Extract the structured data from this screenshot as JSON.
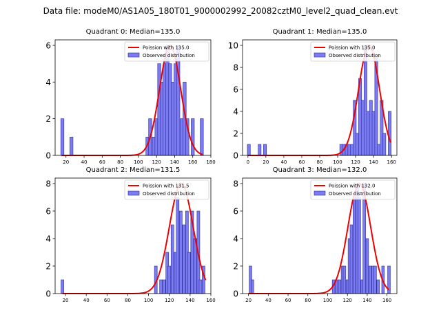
{
  "figure_title": "Data file: modeM0/AS1A05_180T01_9000002992_20082cztM0_level2_quad_clean.evt",
  "chart_data": [
    {
      "type": "bar",
      "quadrant": 0,
      "title": "Quadrant 0: Median=135.0",
      "median": 135.0,
      "xlim": [
        8,
        180
      ],
      "ylim": [
        0,
        6.3
      ],
      "xticks": [
        20,
        40,
        60,
        80,
        100,
        120,
        140,
        160,
        180
      ],
      "yticks": [
        0,
        2,
        4,
        6
      ],
      "bin_width": 3.5,
      "bins": [
        {
          "x": 16,
          "count": 2
        },
        {
          "x": 26,
          "count": 1
        },
        {
          "x": 110,
          "count": 1
        },
        {
          "x": 113,
          "count": 2
        },
        {
          "x": 117,
          "count": 1
        },
        {
          "x": 120,
          "count": 2
        },
        {
          "x": 123,
          "count": 5
        },
        {
          "x": 126,
          "count": 4
        },
        {
          "x": 129,
          "count": 5
        },
        {
          "x": 132,
          "count": 6
        },
        {
          "x": 135,
          "count": 5
        },
        {
          "x": 138,
          "count": 4
        },
        {
          "x": 141,
          "count": 5
        },
        {
          "x": 144,
          "count": 6
        },
        {
          "x": 148,
          "count": 2
        },
        {
          "x": 151,
          "count": 4
        },
        {
          "x": 154,
          "count": 2
        },
        {
          "x": 160,
          "count": 2
        },
        {
          "x": 170,
          "count": 2
        }
      ],
      "fit_scale": 6.0,
      "fit_range": [
        15,
        171
      ],
      "legend": {
        "fit": "Poission with 135.0",
        "observed": "Observed distribution"
      }
    },
    {
      "type": "bar",
      "quadrant": 1,
      "title": "Quadrant 1: Median=135.0",
      "median": 135.0,
      "xlim": [
        -6,
        166
      ],
      "ylim": [
        0,
        10.5
      ],
      "xticks": [
        0,
        20,
        40,
        60,
        80,
        100,
        120,
        140,
        160
      ],
      "yticks": [
        0,
        2,
        4,
        6,
        8,
        10
      ],
      "bin_width": 3.3,
      "bins": [
        {
          "x": 1,
          "count": 1
        },
        {
          "x": 13,
          "count": 1
        },
        {
          "x": 19,
          "count": 1
        },
        {
          "x": 104,
          "count": 1
        },
        {
          "x": 107,
          "count": 1
        },
        {
          "x": 110,
          "count": 1
        },
        {
          "x": 113,
          "count": 1
        },
        {
          "x": 116,
          "count": 1
        },
        {
          "x": 119,
          "count": 5
        },
        {
          "x": 122,
          "count": 2
        },
        {
          "x": 125,
          "count": 7
        },
        {
          "x": 128,
          "count": 5
        },
        {
          "x": 131,
          "count": 10
        },
        {
          "x": 134,
          "count": 4
        },
        {
          "x": 137,
          "count": 5
        },
        {
          "x": 140,
          "count": 4
        },
        {
          "x": 143,
          "count": 9
        },
        {
          "x": 146,
          "count": 1
        },
        {
          "x": 149,
          "count": 5
        },
        {
          "x": 152,
          "count": 2
        },
        {
          "x": 158,
          "count": 4
        }
      ],
      "fit_scale": 10.0,
      "fit_range": [
        0,
        159
      ],
      "legend": {
        "fit": "Poission with 135.0",
        "observed": "Observed distribution"
      }
    },
    {
      "type": "bar",
      "quadrant": 2,
      "title": "Quadrant 2: Median=131.5",
      "median": 131.5,
      "xlim": [
        10,
        160
      ],
      "ylim": [
        0,
        8.4
      ],
      "xticks": [
        20,
        40,
        60,
        80,
        100,
        120,
        140,
        160
      ],
      "yticks": [
        0,
        2,
        4,
        6,
        8
      ],
      "bin_width": 2.7,
      "bins": [
        {
          "x": 17,
          "count": 1
        },
        {
          "x": 107,
          "count": 2
        },
        {
          "x": 112,
          "count": 1
        },
        {
          "x": 115,
          "count": 1
        },
        {
          "x": 118,
          "count": 3
        },
        {
          "x": 120,
          "count": 2
        },
        {
          "x": 123,
          "count": 5
        },
        {
          "x": 126,
          "count": 3
        },
        {
          "x": 128,
          "count": 7
        },
        {
          "x": 131,
          "count": 6
        },
        {
          "x": 134,
          "count": 5
        },
        {
          "x": 137,
          "count": 6
        },
        {
          "x": 139,
          "count": 3
        },
        {
          "x": 142,
          "count": 6
        },
        {
          "x": 145,
          "count": 4
        },
        {
          "x": 148,
          "count": 6
        },
        {
          "x": 150,
          "count": 1
        },
        {
          "x": 153,
          "count": 2
        }
      ],
      "fit_scale": 8.0,
      "fit_range": [
        17,
        155
      ],
      "legend": {
        "fit": "Poission with 131.5",
        "observed": "Observed distribution"
      }
    },
    {
      "type": "bar",
      "quadrant": 3,
      "title": "Quadrant 3: Median=132.0",
      "median": 132.0,
      "xlim": [
        14,
        170
      ],
      "ylim": [
        0,
        8.4
      ],
      "xticks": [
        20,
        40,
        60,
        80,
        100,
        120,
        140,
        160
      ],
      "yticks": [
        0,
        2,
        4,
        6,
        8
      ],
      "bin_width": 2.7,
      "bins": [
        {
          "x": 22,
          "count": 2
        },
        {
          "x": 24,
          "count": 1
        },
        {
          "x": 106,
          "count": 1
        },
        {
          "x": 109,
          "count": 1
        },
        {
          "x": 112,
          "count": 1
        },
        {
          "x": 115,
          "count": 2
        },
        {
          "x": 117,
          "count": 2
        },
        {
          "x": 120,
          "count": 1
        },
        {
          "x": 122,
          "count": 4
        },
        {
          "x": 124,
          "count": 5
        },
        {
          "x": 127,
          "count": 7
        },
        {
          "x": 130,
          "count": 8
        },
        {
          "x": 132,
          "count": 7
        },
        {
          "x": 135,
          "count": 1
        },
        {
          "x": 137,
          "count": 8
        },
        {
          "x": 140,
          "count": 4
        },
        {
          "x": 143,
          "count": 2
        },
        {
          "x": 146,
          "count": 2
        },
        {
          "x": 148,
          "count": 2
        },
        {
          "x": 151,
          "count": 1
        },
        {
          "x": 156,
          "count": 2
        },
        {
          "x": 162,
          "count": 2
        }
      ],
      "fit_scale": 8.0,
      "fit_range": [
        20,
        162
      ],
      "legend": {
        "fit": "Poission with 132.0",
        "observed": "Observed distribution"
      }
    }
  ]
}
